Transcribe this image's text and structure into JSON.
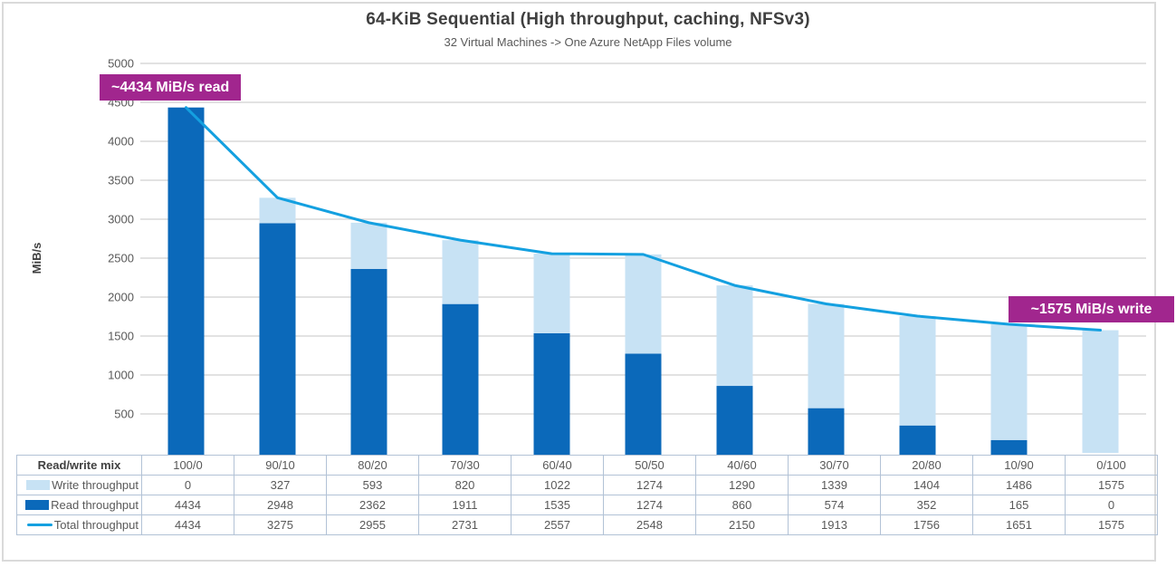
{
  "title": "64-KiB Sequential (High throughput, caching, NFSv3)",
  "subtitle": "32 Virtual Machines -> One Azure NetApp Files volume",
  "ylabel": "MiB/s",
  "annotations": {
    "read_callout": "~4434 MiB/s read",
    "write_callout": "~1575 MiB/s write"
  },
  "colors": {
    "read_bar": "#0b69ba",
    "write_bar": "#c7e2f4",
    "total_line": "#14a0e0",
    "annotation_bg": "#a1268e",
    "gridline": "#d9d9d9",
    "table_border": "#b2c2d6",
    "tick_text": "#595959"
  },
  "chart_data": {
    "type": "bar",
    "stacked": true,
    "title": "64-KiB Sequential (High throughput, caching, NFSv3)",
    "subtitle": "32 Virtual Machines -> One Azure NetApp Files volume",
    "xlabel": "Read/write mix",
    "ylabel": "MiB/s",
    "ylim": [
      0,
      5000
    ],
    "yticks": [
      500,
      1000,
      1500,
      2000,
      2500,
      3000,
      3500,
      4000,
      4500,
      5000
    ],
    "grid": true,
    "legend_position": "table-left",
    "x_header": "Read/write mix",
    "categories": [
      "100/0",
      "90/10",
      "80/20",
      "70/30",
      "60/40",
      "50/50",
      "40/60",
      "30/70",
      "20/80",
      "10/90",
      "0/100"
    ],
    "series": [
      {
        "name": "Write throughput",
        "role": "bar-top",
        "color_key": "write_bar",
        "values": [
          0,
          327,
          593,
          820,
          1022,
          1274,
          1290,
          1339,
          1404,
          1486,
          1575
        ]
      },
      {
        "name": "Read throughput",
        "role": "bar-bottom",
        "color_key": "read_bar",
        "values": [
          4434,
          2948,
          2362,
          1911,
          1535,
          1274,
          860,
          574,
          352,
          165,
          0
        ]
      },
      {
        "name": "Total throughput",
        "role": "line",
        "color_key": "total_line",
        "values": [
          4434,
          3275,
          2955,
          2731,
          2557,
          2548,
          2150,
          1913,
          1756,
          1651,
          1575
        ]
      }
    ]
  }
}
